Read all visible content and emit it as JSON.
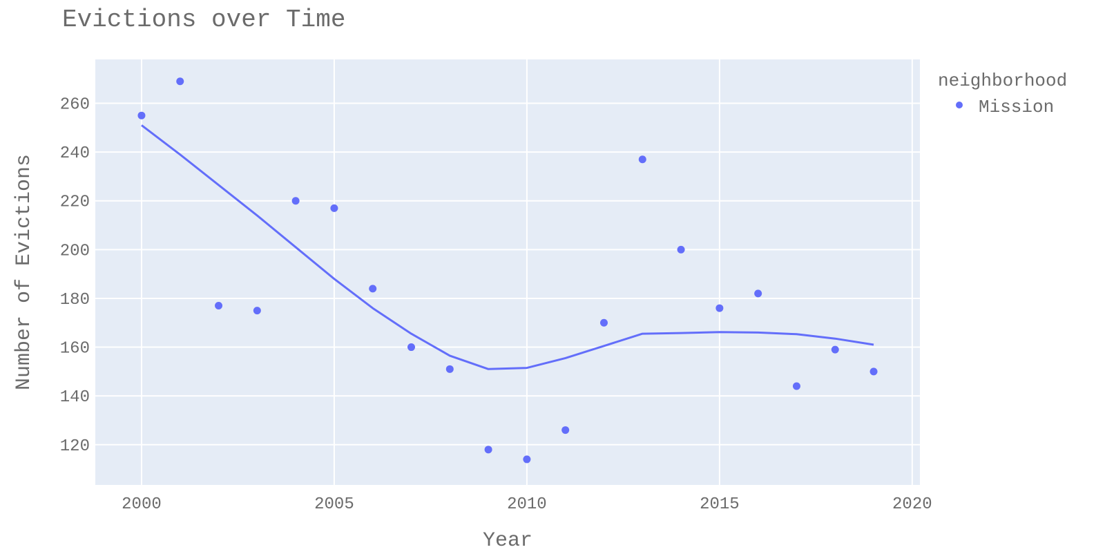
{
  "chart_data": {
    "type": "scatter",
    "title": "Evictions over Time",
    "xlabel": "Year",
    "ylabel": "Number of Evictions",
    "xlim": [
      1998.8,
      2020.2
    ],
    "ylim": [
      103.5,
      278
    ],
    "x_ticks": [
      2000,
      2005,
      2010,
      2015,
      2020
    ],
    "y_ticks": [
      120,
      140,
      160,
      180,
      200,
      220,
      240,
      260
    ],
    "grid": true,
    "legend": {
      "title": "neighborhood",
      "placement": "right"
    },
    "colors": {
      "series": "#636efa",
      "plot_bg": "#e5ecf6",
      "grid": "#ffffff",
      "text": "#6b6b6b"
    },
    "series": [
      {
        "name": "Mission",
        "x": [
          2000,
          2001,
          2002,
          2003,
          2004,
          2005,
          2006,
          2007,
          2008,
          2009,
          2010,
          2011,
          2012,
          2013,
          2014,
          2015,
          2016,
          2017,
          2018,
          2019
        ],
        "values": [
          255,
          269,
          177,
          175,
          220,
          217,
          184,
          160,
          151,
          118,
          114,
          126,
          170,
          237,
          200,
          176,
          182,
          144,
          159,
          150
        ]
      }
    ],
    "trendline": {
      "x": [
        2000,
        2001,
        2002,
        2003,
        2004,
        2005,
        2006,
        2007,
        2008,
        2009,
        2010,
        2011,
        2012,
        2013,
        2014,
        2015,
        2016,
        2017,
        2018,
        2019
      ],
      "values": [
        251,
        239,
        226.5,
        214,
        201,
        188,
        176,
        165.5,
        156.5,
        151,
        151.5,
        155.5,
        160.5,
        165.5,
        165.8,
        166.2,
        166,
        165.3,
        163.5,
        161
      ]
    }
  }
}
